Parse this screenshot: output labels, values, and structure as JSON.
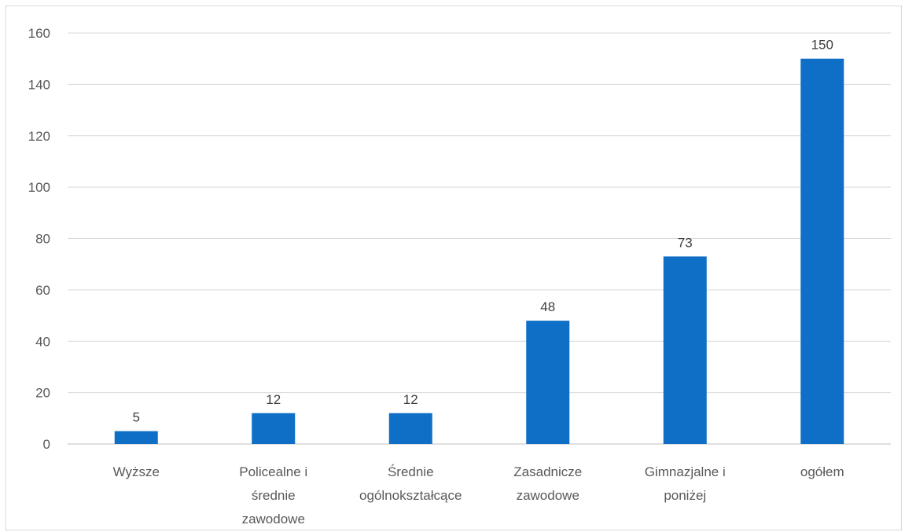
{
  "chart_data": {
    "type": "bar",
    "categories": [
      [
        "Wyższe"
      ],
      [
        "Policealne i",
        "średnie",
        "zawodowe"
      ],
      [
        "Średnie",
        "ogólnokształcące"
      ],
      [
        "Zasadnicze",
        "zawodowe"
      ],
      [
        "Gimnazjalne i",
        "poniżej"
      ],
      [
        "ogółem"
      ]
    ],
    "values": [
      5,
      12,
      12,
      48,
      73,
      150
    ],
    "data_labels": [
      "5",
      "12",
      "12",
      "48",
      "73",
      "150"
    ],
    "ylim": [
      0,
      160
    ],
    "yticks": [
      0,
      20,
      40,
      60,
      80,
      100,
      120,
      140,
      160
    ],
    "grid": true,
    "legend": "none",
    "title": "",
    "xlabel": "",
    "ylabel": "",
    "colors": {
      "bar": "#0f6fc6",
      "grid": "#d9d9d9",
      "axis": "#bfbfbf"
    }
  }
}
